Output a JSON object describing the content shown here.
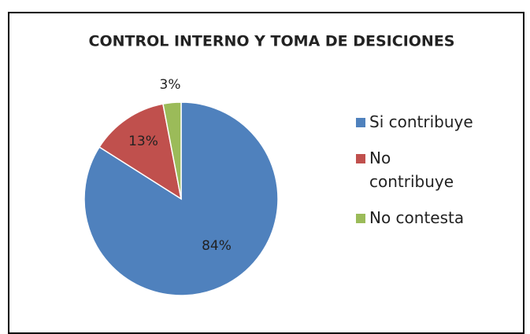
{
  "chart_data": {
    "type": "pie",
    "title": "CONTROL INTERNO Y TOMA DE DESICIONES",
    "categories": [
      "Si contribuye",
      "No contribuye",
      "No contesta"
    ],
    "values": [
      84,
      13,
      3
    ],
    "value_labels": [
      "84%",
      "13%",
      "3%"
    ],
    "colors": [
      "#4f81bd",
      "#c0504d",
      "#9bbb59"
    ]
  }
}
